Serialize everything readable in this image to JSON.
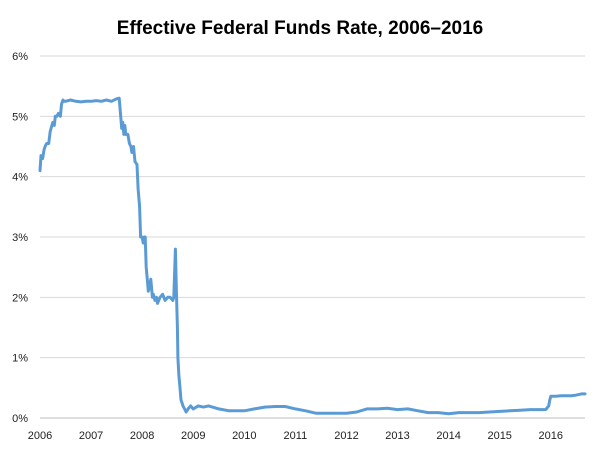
{
  "chart_data": {
    "type": "line",
    "title": "Effective Federal Funds Rate, 2006–2016",
    "xlabel": "",
    "ylabel": "",
    "xlim": [
      2006,
      2016.67
    ],
    "ylim": [
      0,
      6
    ],
    "x_ticks": [
      "2006",
      "2007",
      "2008",
      "2009",
      "2010",
      "2011",
      "2012",
      "2013",
      "2014",
      "2015",
      "2016"
    ],
    "y_ticks": [
      "0%",
      "1%",
      "2%",
      "3%",
      "4%",
      "5%",
      "6%"
    ],
    "grid": "horizontal",
    "legend": "none",
    "series_color": "#5b9bd5",
    "series": [
      {
        "x": [
          2006.0,
          2006.02,
          2006.05,
          2006.08,
          2006.1,
          2006.13,
          2006.17,
          2006.2,
          2006.25,
          2006.28,
          2006.3,
          2006.33,
          2006.36,
          2006.4,
          2006.42,
          2006.45,
          2006.47,
          2006.5,
          2006.6,
          2006.7,
          2006.8,
          2006.9,
          2007.0,
          2007.1,
          2007.2,
          2007.3,
          2007.4,
          2007.5,
          2007.55,
          2007.58,
          2007.6,
          2007.62,
          2007.64,
          2007.66,
          2007.68,
          2007.72,
          2007.75,
          2007.78,
          2007.8,
          2007.83,
          2007.86,
          2007.9,
          2007.92,
          2007.95,
          2007.97,
          2008.0,
          2008.02,
          2008.04,
          2008.06,
          2008.08,
          2008.1,
          2008.12,
          2008.15,
          2008.17,
          2008.2,
          2008.22,
          2008.25,
          2008.28,
          2008.3,
          2008.35,
          2008.4,
          2008.45,
          2008.5,
          2008.55,
          2008.6,
          2008.62,
          2008.65,
          2008.67,
          2008.69,
          2008.7,
          2008.72,
          2008.74,
          2008.76,
          2008.78,
          2008.8,
          2008.83,
          2008.86,
          2008.9,
          2008.95,
          2009.0,
          2009.1,
          2009.2,
          2009.3,
          2009.5,
          2009.7,
          2009.9,
          2010.0,
          2010.2,
          2010.4,
          2010.6,
          2010.8,
          2011.0,
          2011.2,
          2011.4,
          2011.6,
          2011.8,
          2012.0,
          2012.2,
          2012.4,
          2012.6,
          2012.8,
          2013.0,
          2013.2,
          2013.4,
          2013.6,
          2013.8,
          2014.0,
          2014.2,
          2014.4,
          2014.6,
          2014.8,
          2015.0,
          2015.2,
          2015.4,
          2015.6,
          2015.8,
          2015.9,
          2015.96,
          2015.98,
          2016.0,
          2016.1,
          2016.2,
          2016.3,
          2016.4,
          2016.5,
          2016.6,
          2016.67
        ],
        "y": [
          4.1,
          4.35,
          4.3,
          4.45,
          4.5,
          4.55,
          4.55,
          4.75,
          4.9,
          4.85,
          5.0,
          5.0,
          5.05,
          5.0,
          5.2,
          5.27,
          5.25,
          5.25,
          5.27,
          5.25,
          5.24,
          5.25,
          5.25,
          5.26,
          5.25,
          5.27,
          5.25,
          5.29,
          5.3,
          5.0,
          4.8,
          4.9,
          4.7,
          4.85,
          4.7,
          4.7,
          4.55,
          4.5,
          4.4,
          4.5,
          4.25,
          4.2,
          3.8,
          3.5,
          3.0,
          3.0,
          2.9,
          3.0,
          3.0,
          2.5,
          2.3,
          2.1,
          2.2,
          2.3,
          2.0,
          2.05,
          1.95,
          2.0,
          1.9,
          2.0,
          2.05,
          1.95,
          2.0,
          2.0,
          1.95,
          2.0,
          2.8,
          2.1,
          1.5,
          1.0,
          0.7,
          0.5,
          0.3,
          0.25,
          0.2,
          0.15,
          0.1,
          0.15,
          0.2,
          0.15,
          0.2,
          0.18,
          0.2,
          0.15,
          0.12,
          0.12,
          0.12,
          0.15,
          0.18,
          0.19,
          0.19,
          0.15,
          0.12,
          0.08,
          0.08,
          0.08,
          0.08,
          0.1,
          0.15,
          0.15,
          0.16,
          0.14,
          0.15,
          0.12,
          0.09,
          0.09,
          0.07,
          0.09,
          0.09,
          0.09,
          0.1,
          0.11,
          0.12,
          0.13,
          0.14,
          0.14,
          0.14,
          0.2,
          0.3,
          0.36,
          0.36,
          0.37,
          0.37,
          0.37,
          0.38,
          0.4,
          0.4
        ]
      }
    ]
  }
}
